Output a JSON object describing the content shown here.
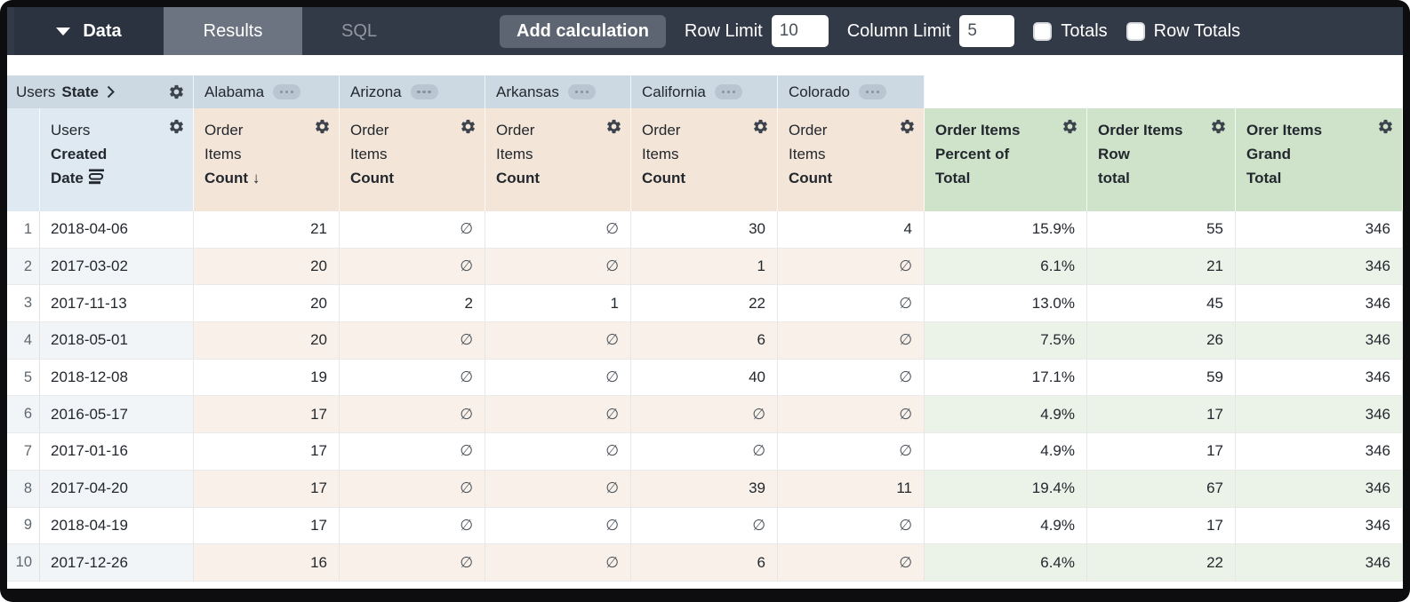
{
  "toolbar": {
    "data_label": "Data",
    "results_tab": "Results",
    "sql_tab": "SQL",
    "add_calculation_label": "Add calculation",
    "row_limit_label": "Row Limit",
    "row_limit_value": "10",
    "column_limit_label": "Column Limit",
    "column_limit_value": "5",
    "totals_label": "Totals",
    "row_totals_label": "Row Totals"
  },
  "colors": {
    "topbar": "#333a47",
    "data_tab": "#2b3240",
    "results_tab": "#6d7481",
    "pivot_header": "#ccd8e2",
    "dimension_header": "#dfe9f1",
    "measure_header": "#f3e5d7",
    "calc_header": "#cfe2ca"
  },
  "pivot": {
    "prefix": "Users",
    "name": "State",
    "values": [
      "Alabama",
      "Arizona",
      "Arkansas",
      "California",
      "Colorado"
    ]
  },
  "row_dimension": {
    "line1": "Users",
    "line2": "Created",
    "line3": "Date"
  },
  "measure": {
    "line1": "Order",
    "line2": "Items",
    "line3": "Count",
    "sort_arrow": "↓"
  },
  "calc_columns": [
    {
      "line1": "Order Items",
      "line2": "Percent of",
      "line3": "Total"
    },
    {
      "line1": "Order Items",
      "line2": "Row",
      "line3": "total"
    },
    {
      "line1": "Orer Items",
      "line2": "Grand",
      "line3": "Total"
    }
  ],
  "icons": {
    "gear": "gear-icon",
    "ellipsis": "ellipsis-pill",
    "empty_symbol": "∅"
  },
  "table": {
    "rows": [
      {
        "num": "1",
        "date": "2018-04-06",
        "values": [
          "21",
          "∅",
          "∅",
          "30",
          "4"
        ],
        "pct": "15.9%",
        "row_total": "55",
        "grand_total": "346"
      },
      {
        "num": "2",
        "date": "2017-03-02",
        "values": [
          "20",
          "∅",
          "∅",
          "1",
          "∅"
        ],
        "pct": "6.1%",
        "row_total": "21",
        "grand_total": "346"
      },
      {
        "num": "3",
        "date": "2017-11-13",
        "values": [
          "20",
          "2",
          "1",
          "22",
          "∅"
        ],
        "pct": "13.0%",
        "row_total": "45",
        "grand_total": "346"
      },
      {
        "num": "4",
        "date": "2018-05-01",
        "values": [
          "20",
          "∅",
          "∅",
          "6",
          "∅"
        ],
        "pct": "7.5%",
        "row_total": "26",
        "grand_total": "346"
      },
      {
        "num": "5",
        "date": "2018-12-08",
        "values": [
          "19",
          "∅",
          "∅",
          "40",
          "∅"
        ],
        "pct": "17.1%",
        "row_total": "59",
        "grand_total": "346"
      },
      {
        "num": "6",
        "date": "2016-05-17",
        "values": [
          "17",
          "∅",
          "∅",
          "∅",
          "∅"
        ],
        "pct": "4.9%",
        "row_total": "17",
        "grand_total": "346"
      },
      {
        "num": "7",
        "date": "2017-01-16",
        "values": [
          "17",
          "∅",
          "∅",
          "∅",
          "∅"
        ],
        "pct": "4.9%",
        "row_total": "17",
        "grand_total": "346"
      },
      {
        "num": "8",
        "date": "2017-04-20",
        "values": [
          "17",
          "∅",
          "∅",
          "39",
          "11"
        ],
        "pct": "19.4%",
        "row_total": "67",
        "grand_total": "346"
      },
      {
        "num": "9",
        "date": "2018-04-19",
        "values": [
          "17",
          "∅",
          "∅",
          "∅",
          "∅"
        ],
        "pct": "4.9%",
        "row_total": "17",
        "grand_total": "346"
      },
      {
        "num": "10",
        "date": "2017-12-26",
        "values": [
          "16",
          "∅",
          "∅",
          "6",
          "∅"
        ],
        "pct": "6.4%",
        "row_total": "22",
        "grand_total": "346"
      }
    ]
  }
}
